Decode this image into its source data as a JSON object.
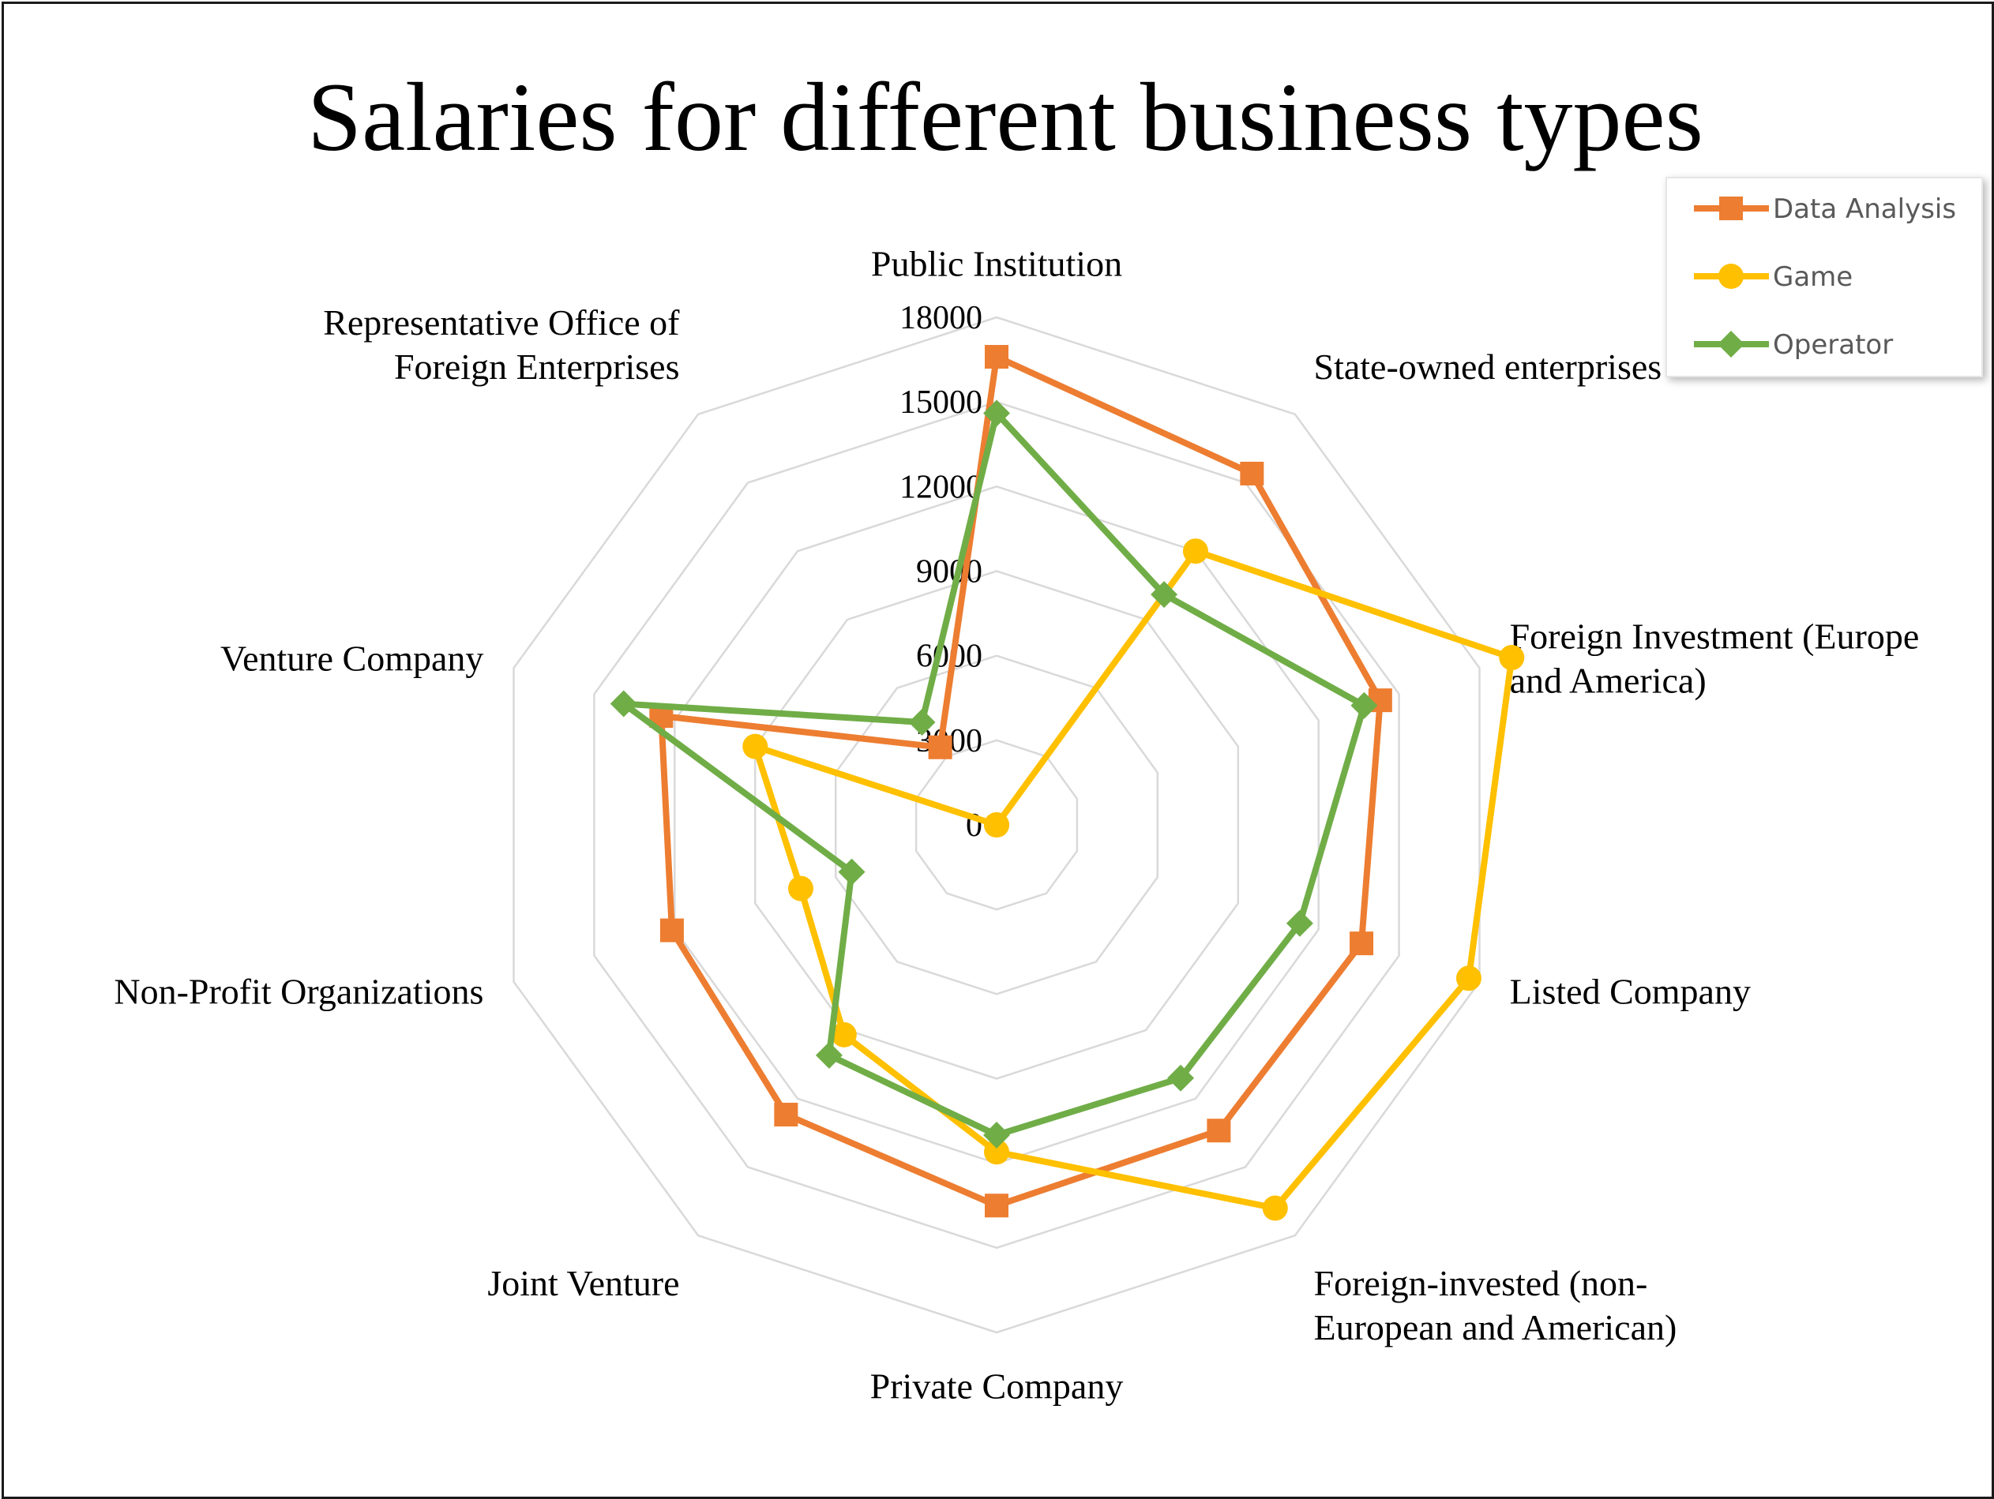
{
  "chart_data": {
    "type": "radar",
    "title": "Salaries for different business types",
    "categories": [
      [
        "Public Institution"
      ],
      [
        "State-owned enterprises"
      ],
      [
        "Foreign Investment (Europe",
        "and America)"
      ],
      [
        "Listed Company"
      ],
      [
        "Foreign-invested (non-",
        "European and American)"
      ],
      [
        "Private Company"
      ],
      [
        "Joint Venture"
      ],
      [
        "Non-Profit Organizations"
      ],
      [
        "Venture Company"
      ],
      [
        "Representative Office of",
        "Foreign Enterprises"
      ]
    ],
    "radial_ticks": [
      "0",
      "3000",
      "6000",
      "9000",
      "12000",
      "15000",
      "18000"
    ],
    "rmax": 18000,
    "series": [
      {
        "name": "Data Analysis",
        "color": "#ED7D31",
        "marker": "square",
        "values": [
          16600,
          15400,
          14300,
          13600,
          13400,
          13500,
          12700,
          12100,
          12500,
          3400
        ]
      },
      {
        "name": "Game",
        "color": "#FFC000",
        "marker": "circle",
        "values": [
          0,
          12000,
          19200,
          17600,
          16800,
          11600,
          9200,
          7300,
          9000,
          0
        ]
      },
      {
        "name": "Operator",
        "color": "#70AD47",
        "marker": "diamond",
        "values": [
          14600,
          10100,
          13700,
          11300,
          11100,
          11000,
          10100,
          5400,
          13900,
          4500
        ]
      }
    ],
    "legend_position": "top-right",
    "grid": true
  }
}
